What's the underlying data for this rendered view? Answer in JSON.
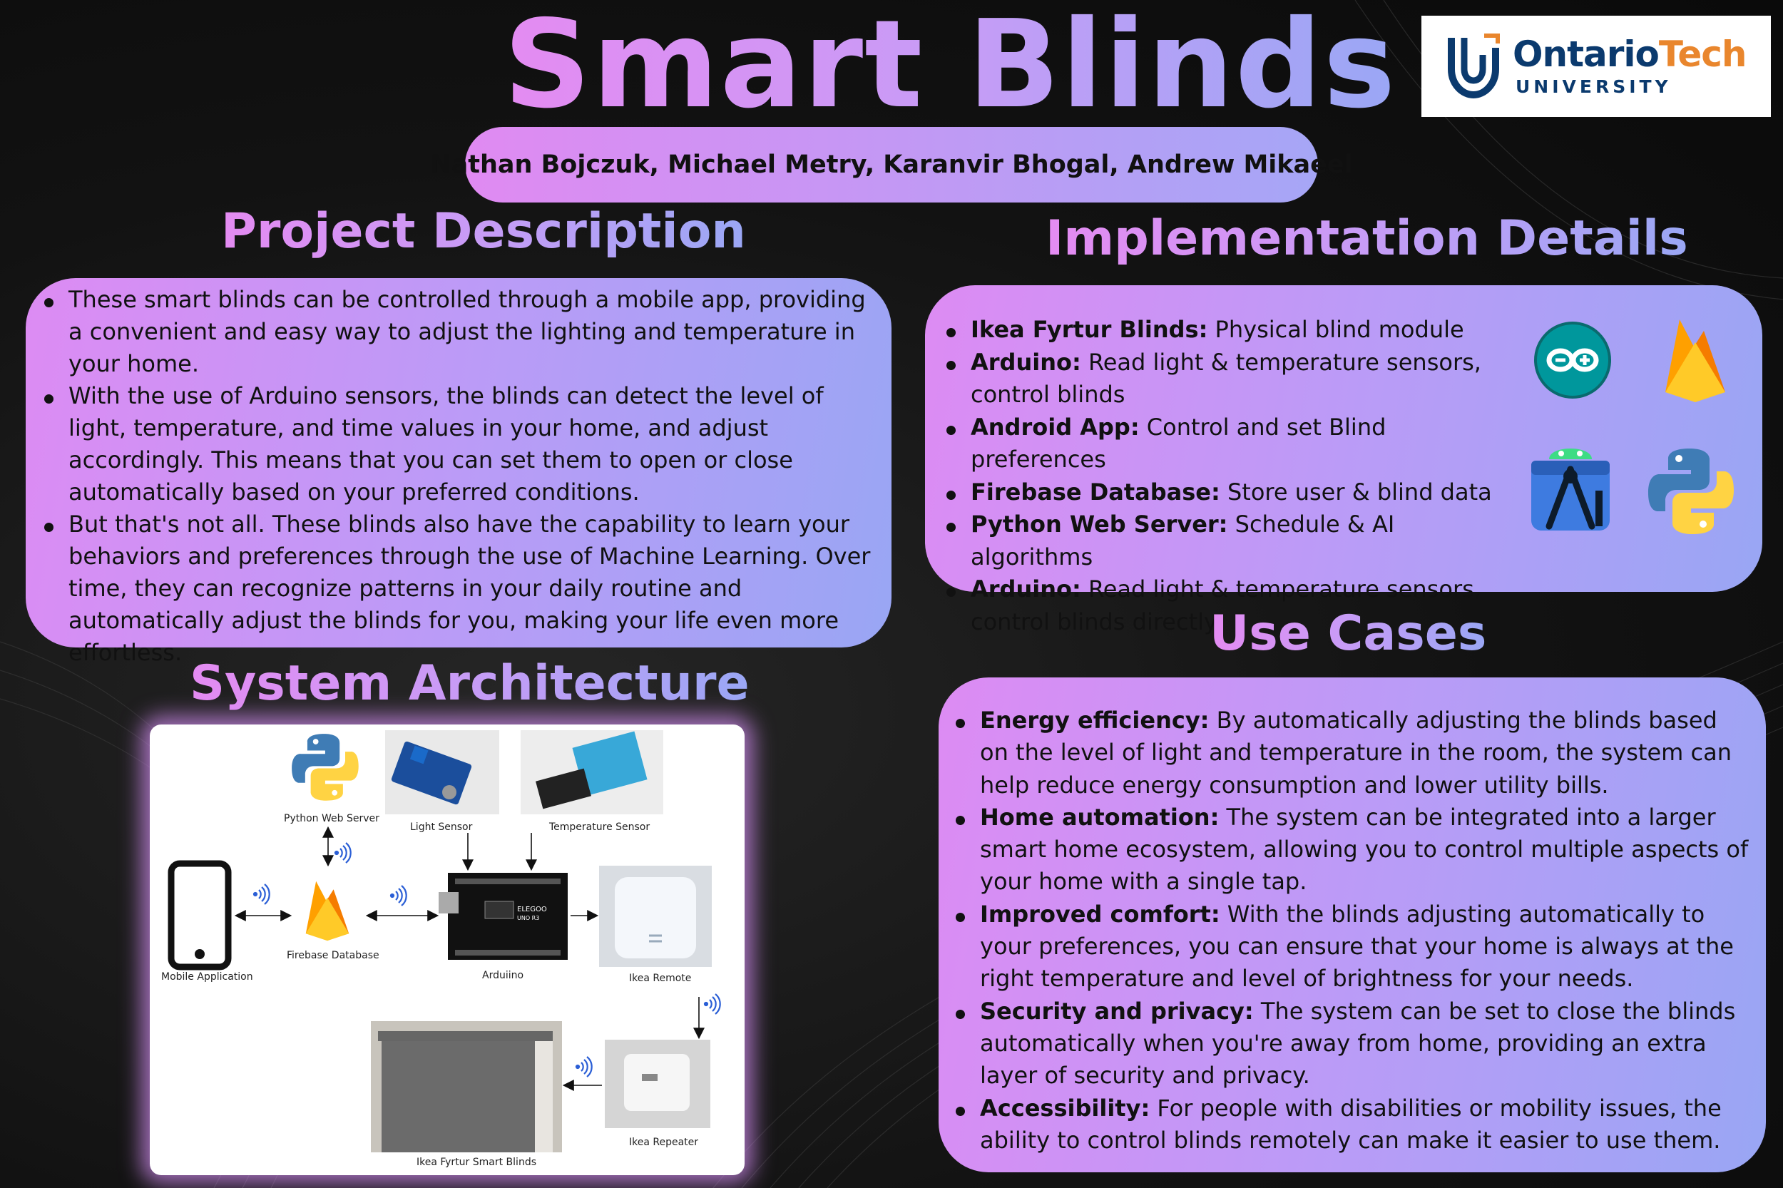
{
  "title": "Smart Blinds",
  "authors": "Nathan Bojczuk, Michael Metry, Karanvir Bhogal, Andrew Mikaeel",
  "logo": {
    "name_part1": "Ontario",
    "name_part2": "Tech",
    "sub": "UNIVERSITY"
  },
  "headings": {
    "project_description": "Project Description",
    "implementation_details": "Implementation Details",
    "use_cases": "Use Cases",
    "system_architecture": "System Architecture"
  },
  "project_description": [
    "These smart blinds can be controlled through a mobile app, providing a convenient and easy way to adjust the lighting and temperature in your home.",
    "With the use of Arduino sensors, the blinds can detect the level of light, temperature, and time values in your home, and adjust accordingly. This means that you can set them to open or close automatically based on your preferred conditions.",
    "But that's not all. These blinds also have the capability to learn your behaviors and preferences through the use of Machine Learning. Over time, they can recognize patterns in your daily routine and automatically adjust the blinds for you, making your life even more effortless."
  ],
  "implementation_details": [
    {
      "term": "Ikea Fyrtur Blinds:",
      "text": " Physical blind module"
    },
    {
      "term": "Arduino:",
      "text": " Read light & temperature sensors, control blinds"
    },
    {
      "term": "Android App:",
      "text": " Control and set Blind preferences"
    },
    {
      "term": "Firebase Database:",
      "text": " Store user & blind data"
    },
    {
      "term": "Python Web Server:",
      "text": " Schedule & AI algorithms"
    },
    {
      "term": "Arduino:",
      "text": " Read light & temperature sensors, control blinds directly"
    }
  ],
  "use_cases": [
    {
      "term": "Energy efficiency:",
      "text": " By automatically adjusting the blinds based on the level of light and temperature in the room, the system can help reduce energy consumption and lower utility bills."
    },
    {
      "term": "Home automation:",
      "text": " The system can be integrated into a larger smart home ecosystem, allowing you to control multiple aspects of your home with a single tap."
    },
    {
      "term": "Improved comfort:",
      "text": " With the blinds adjusting automatically to your preferences, you can ensure that your home is always at the right temperature and level of brightness for your needs."
    },
    {
      "term": "Security and privacy:",
      "text": " The system can be set to close the blinds automatically when you're away from home, providing an extra layer of security and privacy."
    },
    {
      "term": "Accessibility:",
      "text": " For people with disabilities or mobility issues, the ability to control blinds remotely can make it easier to use them."
    }
  ],
  "architecture": {
    "python_web_server": "Python Web Server",
    "light_sensor": "Light Sensor",
    "temperature_sensor": "Temperature Sensor",
    "mobile_application": "Mobile Application",
    "firebase_database": "Firebase Database",
    "arduino": "Arduiino",
    "ikea_remote": "Ikea Remote",
    "ikea_repeater": "Ikea Repeater",
    "ikea_fyrtur": "Ikea Fyrtur Smart Blinds",
    "board_text_1": "ELEGOO",
    "board_text_2": "UNO R3"
  }
}
